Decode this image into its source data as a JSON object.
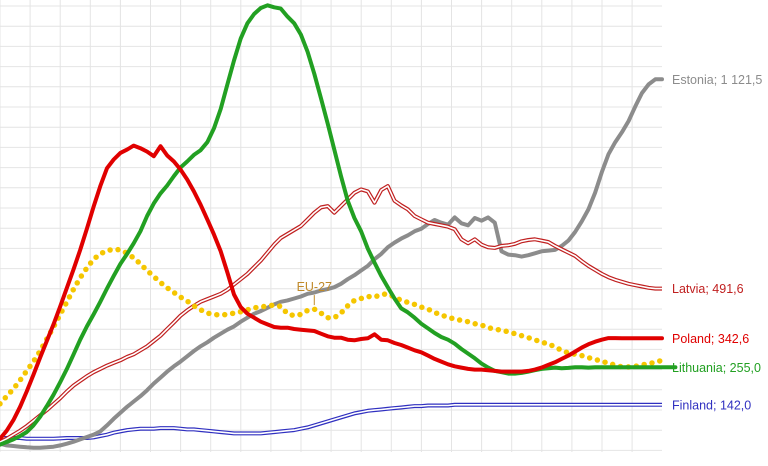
{
  "chart_data": {
    "type": "line",
    "title": "",
    "xlabel": "",
    "ylabel": "",
    "x_points": 100,
    "ylim": [
      0,
      1360
    ],
    "grid": true,
    "series": [
      {
        "name": "Estonia",
        "label": "Estonia; 1 121,5",
        "color": "#8c8c8c",
        "values": [
          25,
          20,
          18,
          16,
          14,
          13,
          13,
          14,
          16,
          20,
          25,
          31,
          38,
          45,
          52,
          62,
          80,
          100,
          118,
          136,
          152,
          168,
          186,
          206,
          224,
          242,
          258,
          272,
          288,
          304,
          318,
          330,
          344,
          356,
          368,
          378,
          392,
          404,
          416,
          424,
          434,
          444,
          452,
          456,
          462,
          468,
          476,
          480,
          486,
          490,
          496,
          506,
          520,
          532,
          546,
          560,
          580,
          596,
          616,
          630,
          642,
          652,
          664,
          672,
          686,
          698,
          690,
          684,
          706,
          688,
          682,
          704,
          696,
          706,
          690,
          604,
          594,
          592,
          588,
          592,
          598,
          604,
          606,
          608,
          620,
          636,
          662,
          694,
          730,
          780,
          842,
          896,
          932,
          962,
          996,
          1040,
          1080,
          1106,
          1121.5,
          1121.5
        ]
      },
      {
        "name": "Latvia",
        "label": "Latvia; 491,6",
        "color": "#c02020",
        "double": true,
        "values": [
          30,
          40,
          52,
          64,
          78,
          94,
          110,
          126,
          144,
          162,
          182,
          200,
          214,
          228,
          240,
          250,
          260,
          268,
          276,
          286,
          294,
          306,
          318,
          334,
          350,
          370,
          390,
          410,
          426,
          440,
          452,
          460,
          468,
          476,
          488,
          504,
          520,
          536,
          556,
          576,
          600,
          624,
          644,
          656,
          668,
          680,
          700,
          720,
          736,
          740,
          720,
          740,
          760,
          780,
          790,
          784,
          750,
          788,
          800,
          756,
          742,
          730,
          710,
          700,
          690,
          686,
          682,
          678,
          670,
          640,
          628,
          640,
          624,
          616,
          614,
          620,
          622,
          626,
          634,
          638,
          640,
          636,
          632,
          620,
          610,
          600,
          590,
          574,
          560,
          548,
          536,
          526,
          518,
          512,
          506,
          502,
          498,
          494,
          491.6,
          491.6
        ]
      },
      {
        "name": "EU-27",
        "label": "EU-27",
        "color": "#f5c600",
        "dotted": true,
        "annotate_index": 47,
        "values": [
          145,
          168,
          190,
          216,
          244,
          272,
          304,
          340,
          376,
          414,
          452,
          490,
          524,
          554,
          580,
          596,
          606,
          610,
          608,
          598,
          584,
          566,
          546,
          528,
          510,
          494,
          480,
          466,
          454,
          440,
          428,
          418,
          414,
          412,
          414,
          418,
          422,
          428,
          434,
          436,
          440,
          442,
          438,
          416,
          410,
          414,
          426,
          430,
          418,
          404,
          404,
          418,
          440,
          456,
          462,
          468,
          466,
          474,
          476,
          466,
          456,
          450,
          444,
          436,
          430,
          420,
          412,
          406,
          400,
          396,
          392,
          386,
          382,
          374,
          370,
          366,
          362,
          356,
          350,
          344,
          338,
          330,
          326,
          316,
          306,
          298,
          294,
          290,
          284,
          278,
          274,
          266,
          262,
          256,
          256,
          258,
          262,
          266,
          270,
          276
        ]
      },
      {
        "name": "Lithuania",
        "label": "Lithuania; 255,0",
        "color": "#22a022",
        "values": [
          22,
          30,
          38,
          48,
          60,
          80,
          106,
          138,
          172,
          210,
          250,
          294,
          338,
          378,
          414,
          452,
          492,
          530,
          566,
          596,
          628,
          664,
          710,
          748,
          778,
          802,
          830,
          856,
          874,
          894,
          908,
          932,
          974,
          1032,
          1106,
          1178,
          1244,
          1290,
          1318,
          1336,
          1344,
          1338,
          1334,
          1310,
          1290,
          1256,
          1204,
          1138,
          1064,
          988,
          910,
          830,
          756,
          704,
          664,
          612,
          570,
          530,
          496,
          462,
          432,
          420,
          404,
          386,
          372,
          358,
          346,
          338,
          326,
          310,
          296,
          282,
          266,
          254,
          244,
          240,
          236,
          236,
          238,
          242,
          246,
          250,
          252,
          254,
          252,
          253,
          255,
          255,
          254,
          255,
          255.0,
          255.0,
          255,
          255,
          255,
          255,
          255,
          255,
          255,
          255,
          255,
          255
        ]
      },
      {
        "name": "Poland",
        "label": "Poland; 342,6",
        "color": "#e00000",
        "values": [
          40,
          64,
          96,
          136,
          182,
          232,
          284,
          334,
          384,
          438,
          494,
          550,
          608,
          672,
          738,
          800,
          854,
          880,
          900,
          910,
          922,
          914,
          904,
          890,
          920,
          892,
          874,
          850,
          820,
          784,
          744,
          700,
          654,
          604,
          540,
          474,
          436,
          416,
          404,
          392,
          384,
          376,
          374,
          374,
          370,
          368,
          366,
          364,
          356,
          348,
          344,
          344,
          338,
          336,
          340,
          342,
          354,
          338,
          336,
          328,
          322,
          314,
          306,
          300,
          290,
          280,
          272,
          264,
          258,
          254,
          250,
          248,
          248,
          246,
          244,
          242,
          242,
          242,
          242,
          244,
          248,
          254,
          262,
          270,
          280,
          290,
          302,
          314,
          324,
          332,
          338,
          342.6,
          342.6,
          342,
          342,
          342,
          342,
          342,
          342,
          342
        ]
      },
      {
        "name": "Finland",
        "label": "Finland; 142,0",
        "color": "#3030c0",
        "double": true,
        "values": [
          42,
          42,
          42,
          42,
          40,
          40,
          40,
          40,
          40,
          41,
          42,
          42,
          42,
          42,
          44,
          48,
          52,
          58,
          62,
          66,
          68,
          70,
          70,
          70,
          72,
          72,
          72,
          70,
          68,
          68,
          66,
          64,
          62,
          60,
          58,
          56,
          56,
          56,
          56,
          56,
          58,
          60,
          62,
          64,
          66,
          70,
          74,
          80,
          86,
          92,
          98,
          104,
          110,
          116,
          120,
          124,
          126,
          128,
          130,
          132,
          134,
          136,
          138,
          138,
          140,
          140,
          140,
          140,
          142,
          142,
          142,
          142,
          142,
          142,
          142,
          142,
          142,
          142,
          142,
          142,
          142,
          142,
          142,
          142,
          142,
          142,
          142,
          142,
          142,
          142,
          142,
          142,
          142,
          142,
          142,
          142,
          142,
          142,
          142,
          142
        ]
      }
    ]
  }
}
